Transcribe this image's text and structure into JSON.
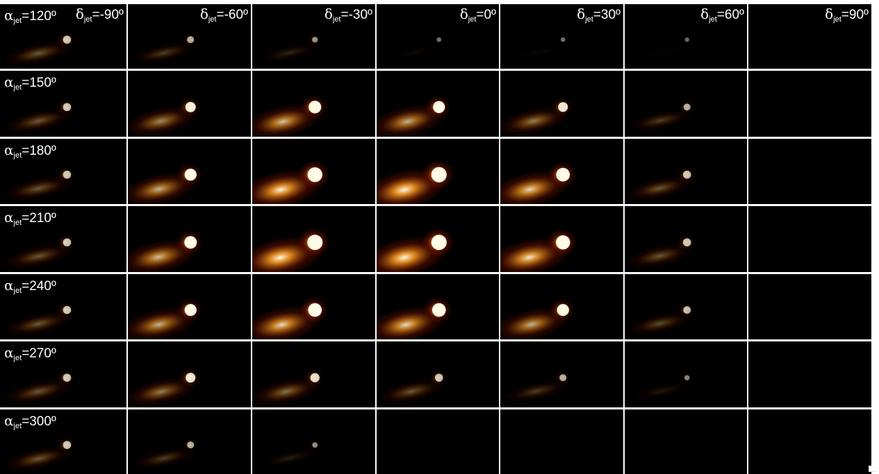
{
  "alpha_symbol": "α",
  "delta_symbol": "δ",
  "subscript": "jet",
  "rows": [
    {
      "alpha": "=120º",
      "intensity": [
        0.35,
        0.25,
        0.15,
        0.04,
        0.03,
        0.02,
        0.0
      ]
    },
    {
      "alpha": "=150º",
      "intensity": [
        0.35,
        0.55,
        0.75,
        0.7,
        0.5,
        0.25,
        0.0
      ]
    },
    {
      "alpha": "=180º",
      "intensity": [
        0.35,
        0.7,
        0.95,
        1.0,
        0.85,
        0.35,
        0.0
      ]
    },
    {
      "alpha": "=210º",
      "intensity": [
        0.35,
        0.75,
        1.0,
        1.0,
        0.9,
        0.35,
        0.0
      ]
    },
    {
      "alpha": "=240º",
      "intensity": [
        0.35,
        0.7,
        0.85,
        0.85,
        0.7,
        0.3,
        0.0
      ]
    },
    {
      "alpha": "=270º",
      "intensity": [
        0.35,
        0.5,
        0.45,
        0.35,
        0.25,
        0.1,
        0.0
      ]
    },
    {
      "alpha": "=300º",
      "intensity": [
        0.35,
        0.25,
        0.12,
        0.0,
        0.0,
        0.0,
        0.0
      ]
    }
  ],
  "columns": [
    {
      "delta": "=-90º"
    },
    {
      "delta": "=-60º"
    },
    {
      "delta": "=-30º"
    },
    {
      "delta": "=0º"
    },
    {
      "delta": "=30º"
    },
    {
      "delta": "=60º"
    },
    {
      "delta": "=90º"
    }
  ],
  "colors": {
    "background": "#000000",
    "divider": "#ffffff",
    "glow_core": "#fffbe6",
    "glow_mid": "#ff9a1f",
    "glow_outer": "#7a1400",
    "text": "#ffffff"
  }
}
